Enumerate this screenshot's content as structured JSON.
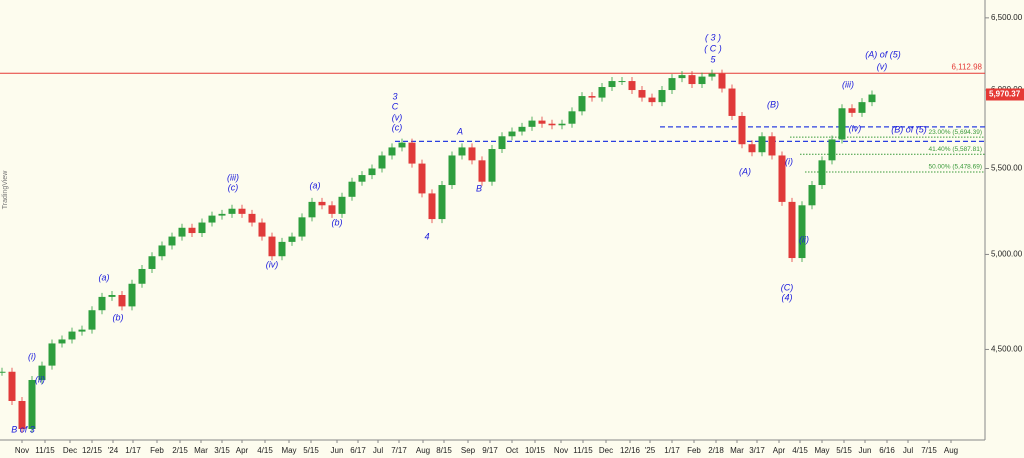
{
  "chart_data": {
    "type": "candlestick",
    "watermark": "TradingView",
    "values": [
      4390,
      4250,
      4120,
      4350,
      4420,
      4530,
      4550,
      4590,
      4600,
      4700,
      4770,
      4780,
      4720,
      4840,
      4920,
      4990,
      5050,
      5100,
      5150,
      5120,
      5180,
      5220,
      5230,
      5260,
      5230,
      5180,
      5100,
      4990,
      5070,
      5100,
      5210,
      5300,
      5280,
      5230,
      5330,
      5420,
      5460,
      5500,
      5580,
      5630,
      5660,
      5530,
      5350,
      5200,
      5400,
      5580,
      5630,
      5550,
      5420,
      5620,
      5700,
      5730,
      5760,
      5800,
      5780,
      5770,
      5780,
      5860,
      5960,
      5950,
      6020,
      6060,
      6060,
      6000,
      5950,
      5920,
      6000,
      6080,
      6100,
      6040,
      6090,
      6110,
      6010,
      5830,
      5650,
      5600,
      5700,
      5580,
      5300,
      4980,
      5280,
      5400,
      5550,
      5680,
      5880,
      5850,
      5920,
      5970
    ],
    "up_color": "#2e9e3e",
    "down_color": "#e03a3a",
    "log_scale": true,
    "ylim": [
      4070,
      6630
    ],
    "yticks": [
      {
        "value": 4500,
        "label": "4,500.00"
      },
      {
        "value": 5000,
        "label": "5,000.00"
      },
      {
        "value": 5500,
        "label": "5,500.00"
      },
      {
        "value": 6000,
        "label": "6,000.00"
      },
      {
        "value": 6500,
        "label": "6,500.00"
      }
    ],
    "xlim": [
      -0.2,
      98.3
    ],
    "xticks": [
      {
        "value": 2.0,
        "label": "Nov"
      },
      {
        "value": 4.3,
        "label": "11/15"
      },
      {
        "value": 6.8,
        "label": "Dec"
      },
      {
        "value": 9.0,
        "label": "12/15"
      },
      {
        "value": 11.1,
        "label": "'24"
      },
      {
        "value": 13.1,
        "label": "1/17"
      },
      {
        "value": 15.5,
        "label": "Feb"
      },
      {
        "value": 17.8,
        "label": "2/15"
      },
      {
        "value": 19.9,
        "label": "Mar"
      },
      {
        "value": 22.0,
        "label": "3/15"
      },
      {
        "value": 24.0,
        "label": "Apr"
      },
      {
        "value": 26.3,
        "label": "4/15"
      },
      {
        "value": 28.7,
        "label": "May"
      },
      {
        "value": 30.9,
        "label": "5/15"
      },
      {
        "value": 33.5,
        "label": "Jun"
      },
      {
        "value": 35.6,
        "label": "6/17"
      },
      {
        "value": 37.6,
        "label": "Jul"
      },
      {
        "value": 39.7,
        "label": "7/17"
      },
      {
        "value": 42.1,
        "label": "Aug"
      },
      {
        "value": 44.2,
        "label": "8/15"
      },
      {
        "value": 46.6,
        "label": "Sep"
      },
      {
        "value": 48.8,
        "label": "9/17"
      },
      {
        "value": 51.0,
        "label": "Oct"
      },
      {
        "value": 53.3,
        "label": "10/15"
      },
      {
        "value": 55.9,
        "label": "Nov"
      },
      {
        "value": 58.1,
        "label": "11/15"
      },
      {
        "value": 60.4,
        "label": "Dec"
      },
      {
        "value": 62.8,
        "label": "12/16"
      },
      {
        "value": 64.8,
        "label": "'25"
      },
      {
        "value": 67.0,
        "label": "1/17"
      },
      {
        "value": 69.2,
        "label": "Feb"
      },
      {
        "value": 71.4,
        "label": "2/18"
      },
      {
        "value": 73.5,
        "label": "Mar"
      },
      {
        "value": 75.5,
        "label": "3/17"
      },
      {
        "value": 77.7,
        "label": "Apr"
      },
      {
        "value": 79.8,
        "label": "4/15"
      },
      {
        "value": 82.0,
        "label": "May"
      },
      {
        "value": 84.2,
        "label": "5/15"
      },
      {
        "value": 86.3,
        "label": "Jun"
      },
      {
        "value": 88.5,
        "label": "6/16"
      },
      {
        "value": 90.6,
        "label": "Jul"
      },
      {
        "value": 92.7,
        "label": "7/15"
      },
      {
        "value": 94.9,
        "label": "Aug"
      }
    ],
    "high_line": {
      "value": 6112.98,
      "label": "6,112.98",
      "color": "#e53935"
    },
    "last_price": {
      "value": 5970.37,
      "label": "5,970.37",
      "color": "#e53935"
    },
    "wave_levels": [
      {
        "value": 5668,
        "color": "#2b3fe0"
      },
      {
        "value": 5760,
        "color": "#2b3fe0"
      }
    ],
    "fib_levels": [
      {
        "value": 5694.39,
        "label": "23.00% (5,694.39)"
      },
      {
        "value": 5587.81,
        "label": "41.40% (5,587.81)"
      },
      {
        "value": 5478.69,
        "label": "50.00% (5,478.69)"
      }
    ],
    "fib_color": "#3a9a3a",
    "annotations": [
      "B of 3",
      "(i)",
      "(ii)",
      "(a)",
      "(b)",
      "(iii)",
      "(c)",
      "(iv)",
      "(a)",
      "(b)",
      "3",
      "C",
      "(v)",
      "(c)",
      "4",
      "A",
      "B",
      "( 3 )",
      "( C )",
      "5",
      "(A)",
      "(B)",
      "(i)",
      "(ii)",
      "(C)",
      "(4)",
      "(iii)",
      "(iv)",
      "(A) of (5)",
      "(v)",
      "(B) of (5)"
    ]
  }
}
